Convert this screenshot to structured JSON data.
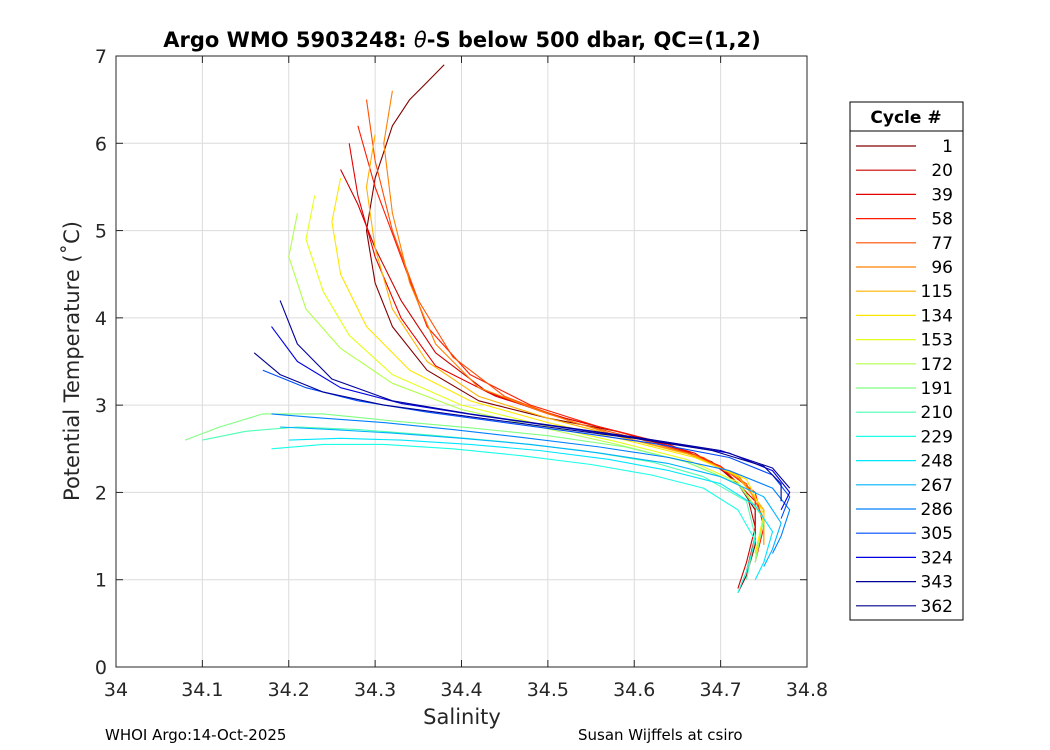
{
  "chart_data": {
    "type": "line",
    "title": "Argo WMO 5903248: θ-S below 500 dbar,  QC=(1,2)",
    "title_prefix": "Argo WMO 5903248: ",
    "title_theta": "θ",
    "title_suffix": "-S below 500 dbar,  QC=(1,2)",
    "xlabel": "Salinity",
    "ylabel": "Potential Temperature (˚C)",
    "xlim": [
      34.0,
      34.8
    ],
    "ylim": [
      0,
      7
    ],
    "grid": true,
    "xticks": [
      34.0,
      34.1,
      34.2,
      34.3,
      34.4,
      34.5,
      34.6,
      34.7,
      34.8
    ],
    "xtick_labels": [
      "34",
      "34.1",
      "34.2",
      "34.3",
      "34.4",
      "34.5",
      "34.6",
      "34.7",
      "34.8"
    ],
    "yticks": [
      0,
      1,
      2,
      3,
      4,
      5,
      6,
      7
    ],
    "ytick_labels": [
      "0",
      "1",
      "2",
      "3",
      "4",
      "5",
      "6",
      "7"
    ],
    "legend": {
      "title": "Cycle #",
      "placement": "outside-right",
      "entries": [
        "1",
        "20",
        "39",
        "58",
        "77",
        "96",
        "115",
        "134",
        "153",
        "172",
        "191",
        "210",
        "229",
        "248",
        "267",
        "286",
        "305",
        "324",
        "343",
        "362"
      ],
      "colors": [
        "#800000",
        "#cc0000",
        "#e60000",
        "#ff1a00",
        "#ff4d00",
        "#ff8000",
        "#ffb300",
        "#ffe600",
        "#e6ff1a",
        "#b3ff4d",
        "#80ff80",
        "#4dffb3",
        "#1affe6",
        "#00e6ff",
        "#00b3ff",
        "#0080ff",
        "#004dff",
        "#0000e6",
        "#000099",
        "#00008f"
      ]
    },
    "series": [
      {
        "name": "1",
        "color": "#800000",
        "x": [
          34.38,
          34.36,
          34.34,
          34.32,
          34.3,
          34.29,
          34.3,
          34.32,
          34.36,
          34.42,
          34.5,
          34.58,
          34.64,
          34.69,
          34.72,
          34.74,
          34.74,
          34.73,
          34.72
        ],
        "y": [
          6.9,
          6.7,
          6.5,
          6.2,
          5.6,
          5.0,
          4.4,
          3.9,
          3.4,
          3.05,
          2.85,
          2.7,
          2.55,
          2.35,
          2.1,
          1.8,
          1.4,
          1.05,
          0.85
        ]
      },
      {
        "name": "20",
        "color": "#cc0000",
        "x": [
          34.26,
          34.28,
          34.3,
          34.33,
          34.37,
          34.43,
          34.5,
          34.58,
          34.65,
          34.7,
          34.73,
          34.74,
          34.73,
          34.72
        ],
        "y": [
          5.7,
          5.3,
          4.8,
          4.2,
          3.6,
          3.15,
          2.9,
          2.7,
          2.5,
          2.3,
          2.0,
          1.6,
          1.2,
          0.9
        ]
      },
      {
        "name": "39",
        "color": "#e60000",
        "x": [
          34.27,
          34.28,
          34.3,
          34.33,
          34.37,
          34.44,
          34.52,
          34.6,
          34.67,
          34.71,
          34.74,
          34.74,
          34.73
        ],
        "y": [
          6.0,
          5.4,
          4.7,
          4.0,
          3.45,
          3.1,
          2.85,
          2.65,
          2.45,
          2.2,
          1.9,
          1.5,
          1.1
        ]
      },
      {
        "name": "58",
        "color": "#ff1a00",
        "x": [
          34.28,
          34.3,
          34.33,
          34.36,
          34.41,
          34.48,
          34.56,
          34.64,
          34.7,
          34.74,
          34.75,
          34.74
        ],
        "y": [
          6.2,
          5.5,
          4.7,
          3.9,
          3.35,
          3.0,
          2.75,
          2.55,
          2.3,
          2.0,
          1.6,
          1.2
        ]
      },
      {
        "name": "77",
        "color": "#ff4d00",
        "x": [
          34.29,
          34.3,
          34.32,
          34.35,
          34.39,
          34.45,
          34.53,
          34.61,
          34.68,
          34.73,
          34.75,
          34.74
        ],
        "y": [
          6.5,
          5.8,
          5.0,
          4.2,
          3.55,
          3.1,
          2.8,
          2.6,
          2.4,
          2.1,
          1.7,
          1.3
        ]
      },
      {
        "name": "96",
        "color": "#ff8000",
        "x": [
          34.32,
          34.31,
          34.32,
          34.34,
          34.37,
          34.42,
          34.5,
          34.58,
          34.66,
          34.72,
          34.75,
          34.75
        ],
        "y": [
          6.6,
          6.0,
          5.2,
          4.4,
          3.7,
          3.2,
          2.9,
          2.65,
          2.45,
          2.2,
          1.8,
          1.4
        ]
      },
      {
        "name": "115",
        "color": "#ffb300",
        "x": [
          34.3,
          34.29,
          34.3,
          34.32,
          34.36,
          34.42,
          34.5,
          34.59,
          34.67,
          34.72,
          34.75,
          34.75
        ],
        "y": [
          6.1,
          5.5,
          4.8,
          4.1,
          3.5,
          3.1,
          2.85,
          2.62,
          2.42,
          2.18,
          1.8,
          1.4
        ]
      },
      {
        "name": "134",
        "color": "#ffe600",
        "x": [
          34.26,
          34.25,
          34.26,
          34.29,
          34.34,
          34.41,
          34.5,
          34.59,
          34.67,
          34.73,
          34.75,
          34.74
        ],
        "y": [
          5.6,
          5.1,
          4.5,
          3.9,
          3.4,
          3.05,
          2.8,
          2.6,
          2.4,
          2.15,
          1.75,
          1.3
        ]
      },
      {
        "name": "153",
        "color": "#e6ff1a",
        "x": [
          34.23,
          34.22,
          34.24,
          34.27,
          34.32,
          34.4,
          34.49,
          34.58,
          34.66,
          34.72,
          34.75,
          34.74
        ],
        "y": [
          5.4,
          4.9,
          4.3,
          3.8,
          3.35,
          3.0,
          2.78,
          2.58,
          2.38,
          2.12,
          1.7,
          1.25
        ]
      },
      {
        "name": "172",
        "color": "#b3ff4d",
        "x": [
          34.21,
          34.2,
          34.22,
          34.26,
          34.32,
          34.4,
          34.49,
          34.58,
          34.66,
          34.72,
          34.75,
          34.74
        ],
        "y": [
          5.2,
          4.7,
          4.1,
          3.65,
          3.25,
          2.95,
          2.75,
          2.55,
          2.35,
          2.1,
          1.7,
          1.2
        ]
      },
      {
        "name": "191",
        "color": "#80ff80",
        "x": [
          34.08,
          34.12,
          34.17,
          34.24,
          34.32,
          34.41,
          34.5,
          34.59,
          34.66,
          34.72,
          34.75,
          34.74
        ],
        "y": [
          2.6,
          2.75,
          2.9,
          2.9,
          2.82,
          2.74,
          2.65,
          2.52,
          2.35,
          2.1,
          1.7,
          1.2
        ]
      },
      {
        "name": "210",
        "color": "#4dffb3",
        "x": [
          34.1,
          34.15,
          34.21,
          34.28,
          34.36,
          34.45,
          34.54,
          34.62,
          34.68,
          34.73,
          34.74,
          34.73
        ],
        "y": [
          2.6,
          2.7,
          2.75,
          2.72,
          2.66,
          2.58,
          2.48,
          2.35,
          2.18,
          1.9,
          1.5,
          1.0
        ]
      },
      {
        "name": "229",
        "color": "#1affe6",
        "x": [
          34.18,
          34.24,
          34.31,
          34.39,
          34.47,
          34.55,
          34.62,
          34.68,
          34.72,
          34.74,
          34.73,
          34.72
        ],
        "y": [
          2.5,
          2.55,
          2.55,
          2.5,
          2.42,
          2.32,
          2.2,
          2.05,
          1.8,
          1.45,
          1.1,
          0.85
        ]
      },
      {
        "name": "248",
        "color": "#00e6ff",
        "x": [
          34.2,
          34.26,
          34.33,
          34.41,
          34.49,
          34.57,
          34.64,
          34.7,
          34.74,
          34.76,
          34.75,
          34.74
        ],
        "y": [
          2.6,
          2.62,
          2.6,
          2.55,
          2.48,
          2.38,
          2.25,
          2.1,
          1.85,
          1.55,
          1.2,
          1.0
        ]
      },
      {
        "name": "267",
        "color": "#00b3ff",
        "x": [
          34.19,
          34.25,
          34.32,
          34.4,
          34.48,
          34.56,
          34.64,
          34.7,
          34.75,
          34.77,
          34.76,
          34.75
        ],
        "y": [
          2.75,
          2.72,
          2.68,
          2.62,
          2.55,
          2.45,
          2.33,
          2.18,
          1.95,
          1.65,
          1.35,
          1.15
        ]
      },
      {
        "name": "286",
        "color": "#0080ff",
        "x": [
          34.18,
          34.24,
          34.31,
          34.39,
          34.47,
          34.56,
          34.64,
          34.71,
          34.76,
          34.78,
          34.77,
          34.76
        ],
        "y": [
          2.9,
          2.85,
          2.8,
          2.72,
          2.63,
          2.52,
          2.4,
          2.25,
          2.05,
          1.8,
          1.5,
          1.3
        ]
      },
      {
        "name": "305",
        "color": "#004dff",
        "x": [
          34.17,
          34.22,
          34.28,
          34.36,
          34.45,
          34.54,
          34.63,
          34.71,
          34.76,
          34.78,
          34.77
        ],
        "y": [
          3.4,
          3.2,
          3.05,
          2.92,
          2.8,
          2.68,
          2.55,
          2.4,
          2.2,
          1.95,
          1.7
        ]
      },
      {
        "name": "324",
        "color": "#0000e6",
        "x": [
          34.18,
          34.21,
          34.26,
          34.33,
          34.42,
          34.52,
          34.62,
          34.71,
          34.76,
          34.78,
          34.77
        ],
        "y": [
          3.9,
          3.5,
          3.2,
          3.02,
          2.88,
          2.74,
          2.6,
          2.45,
          2.25,
          2.0,
          1.8
        ]
      },
      {
        "name": "343",
        "color": "#000099",
        "x": [
          34.19,
          34.21,
          34.25,
          34.32,
          34.41,
          34.51,
          34.61,
          34.7,
          34.76,
          34.78
        ],
        "y": [
          4.2,
          3.7,
          3.3,
          3.05,
          2.9,
          2.76,
          2.62,
          2.48,
          2.28,
          2.05
        ]
      },
      {
        "name": "362",
        "color": "#00008f",
        "x": [
          34.16,
          34.19,
          34.24,
          34.31,
          34.4,
          34.5,
          34.6,
          34.69,
          34.75,
          34.77,
          34.77
        ],
        "y": [
          3.6,
          3.35,
          3.15,
          3.0,
          2.88,
          2.75,
          2.62,
          2.48,
          2.3,
          2.1,
          1.9
        ]
      }
    ]
  },
  "footer": {
    "left": "WHOI Argo:14-Oct-2025",
    "right": "Susan Wijffels at csiro"
  }
}
